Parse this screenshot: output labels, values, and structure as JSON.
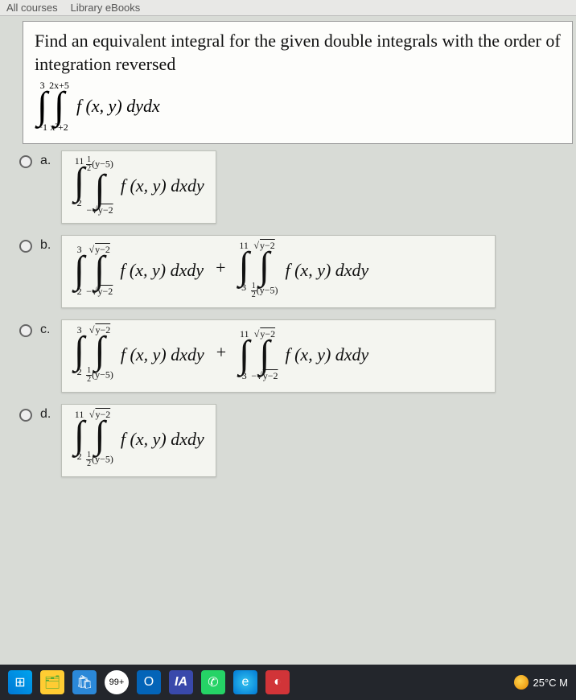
{
  "tabs": {
    "t1": "All courses",
    "t2": "Library eBooks"
  },
  "question": {
    "title": "Find an equivalent integral for the given double integrals with the order of integration reversed",
    "outer_lo": "−1",
    "outer_hi": "3",
    "inner_lo": "x²+2",
    "inner_hi": "2x+5",
    "integrand": "f (x, y) dydx"
  },
  "letters": {
    "a": "a.",
    "b": "b.",
    "c": "c.",
    "d": "d."
  },
  "a": {
    "o_lo": "2",
    "o_hi": "11",
    "i_lo_pre": "−",
    "i_lo_sqrt": "y−2",
    "i_hi_frac_n": "1",
    "i_hi_frac_d": "2",
    "i_hi_rest": "(y−5)",
    "integrand": "f (x, y) dxdy"
  },
  "b": {
    "o1_lo": "2",
    "o1_hi": "3",
    "i1_lo_pre": "−",
    "i1_lo_sqrt": "y−2",
    "i1_hi_sqrt": "y−2",
    "int1": "f (x, y) dxdy",
    "plus": "+",
    "o2_lo": "3",
    "o2_hi": "11",
    "i2_lo_frac_n": "1",
    "i2_lo_frac_d": "2",
    "i2_lo_rest": "(y−5)",
    "i2_hi_sqrt": "y−2",
    "int2": "f (x, y) dxdy"
  },
  "c": {
    "o1_lo": "2",
    "o1_hi": "3",
    "i1_lo_frac_n": "1",
    "i1_lo_frac_d": "2",
    "i1_lo_rest": "(y−5)",
    "i1_hi_sqrt": "y−2",
    "int1": "f (x, y) dxdy",
    "plus": "+",
    "o2_lo": "3",
    "o2_hi": "11",
    "i2_lo_pre": "−",
    "i2_lo_sqrt": "y−2",
    "i2_hi_sqrt": "y−2",
    "int2": "f (x, y) dxdy"
  },
  "d": {
    "o_lo": "2",
    "o_hi": "11",
    "i_lo_frac_n": "1",
    "i_lo_frac_d": "2",
    "i_lo_rest": "(y−5)",
    "i_hi_sqrt": "y−2",
    "integrand": "f (x, y) dxdy"
  },
  "taskbar": {
    "badge": "99+",
    "app_ia": "IA",
    "temp": "25°C  M"
  },
  "colors": {
    "page_bg": "#d8dbd6",
    "box_bg": "#fdfdfb",
    "opt_bg": "#f4f5f0",
    "taskbar_bg": "#23262c"
  }
}
